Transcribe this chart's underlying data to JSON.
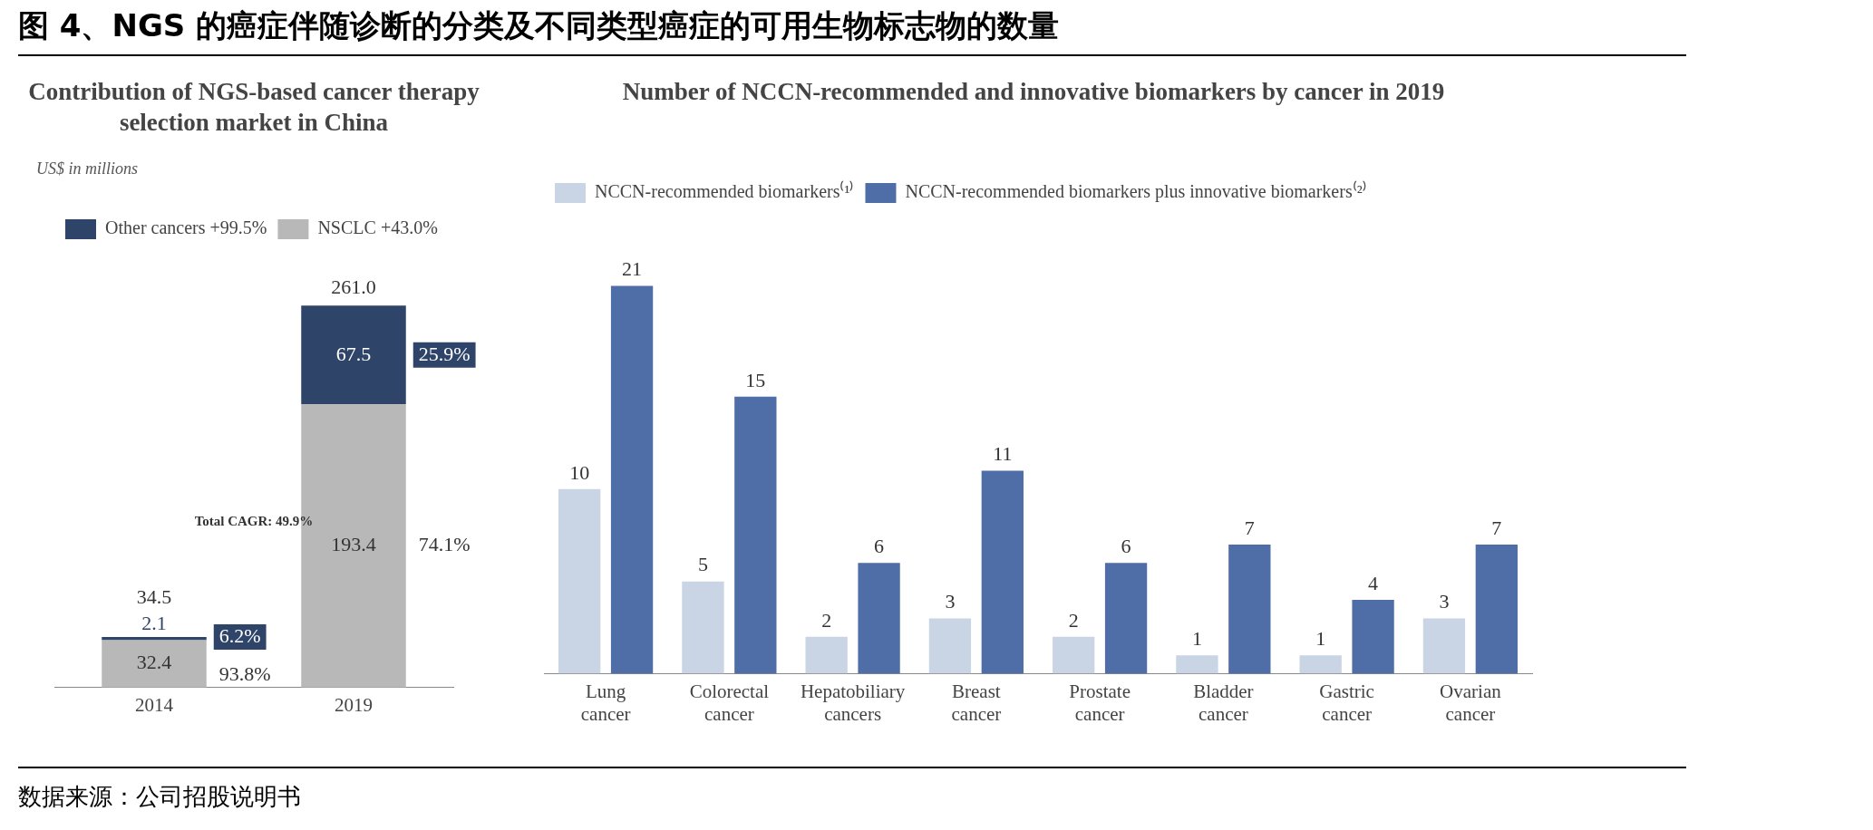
{
  "chart_data": [
    {
      "type": "bar",
      "title": "图 4、NGS 的癌症伴随诊断的分类及不同类型癌症的可用生物标志物的数量",
      "subtitle": "Contribution of NGS-based cancer therapy selection market in China",
      "ylabel": "US$ in millions",
      "stacked": true,
      "categories": [
        "2014",
        "2019"
      ],
      "series": [
        {
          "name": "NSCLC +43.0%",
          "color": "#b8b8b8",
          "values": [
            32.4,
            193.4
          ]
        },
        {
          "name": "Other cancers +99.5%",
          "color": "#2f4469",
          "values": [
            2.1,
            67.5
          ]
        }
      ],
      "data_labels": true,
      "totals": [
        "34.5",
        "261.0"
      ],
      "legend": "top left",
      "grid": false,
      "tick_labels": "x",
      "annotations": [
        "6.2%",
        "93.8%",
        "25.9%",
        "74.1%",
        "Total CAGR: 49.9%"
      ]
    },
    {
      "type": "bar",
      "title": "Number of NCCN-recommended and innovative biomarkers by cancer in 2019",
      "categories": [
        "Lung cancer",
        "Colorectal cancer",
        "Hepatobiliary cancers",
        "Breast cancer",
        "Prostate cancer",
        "Bladder cancer",
        "Gastric cancer",
        "Ovarian cancer"
      ],
      "series": [
        {
          "name": "NCCN-recommended biomarkers⁽¹⁾",
          "color": "#c9d4e4",
          "values": [
            10,
            5,
            2,
            3,
            2,
            1,
            1,
            3
          ]
        },
        {
          "name": "NCCN-recommended biomarkers plus innovative biomarkers⁽²⁾",
          "color": "#4f6ea8",
          "values": [
            21,
            15,
            6,
            11,
            6,
            7,
            4,
            7
          ]
        }
      ],
      "data_labels": true,
      "legend": "top left",
      "grid": false,
      "tick_labels": "x",
      "annotations": [
        "数据来源：公司招股说明书"
      ]
    }
  ]
}
